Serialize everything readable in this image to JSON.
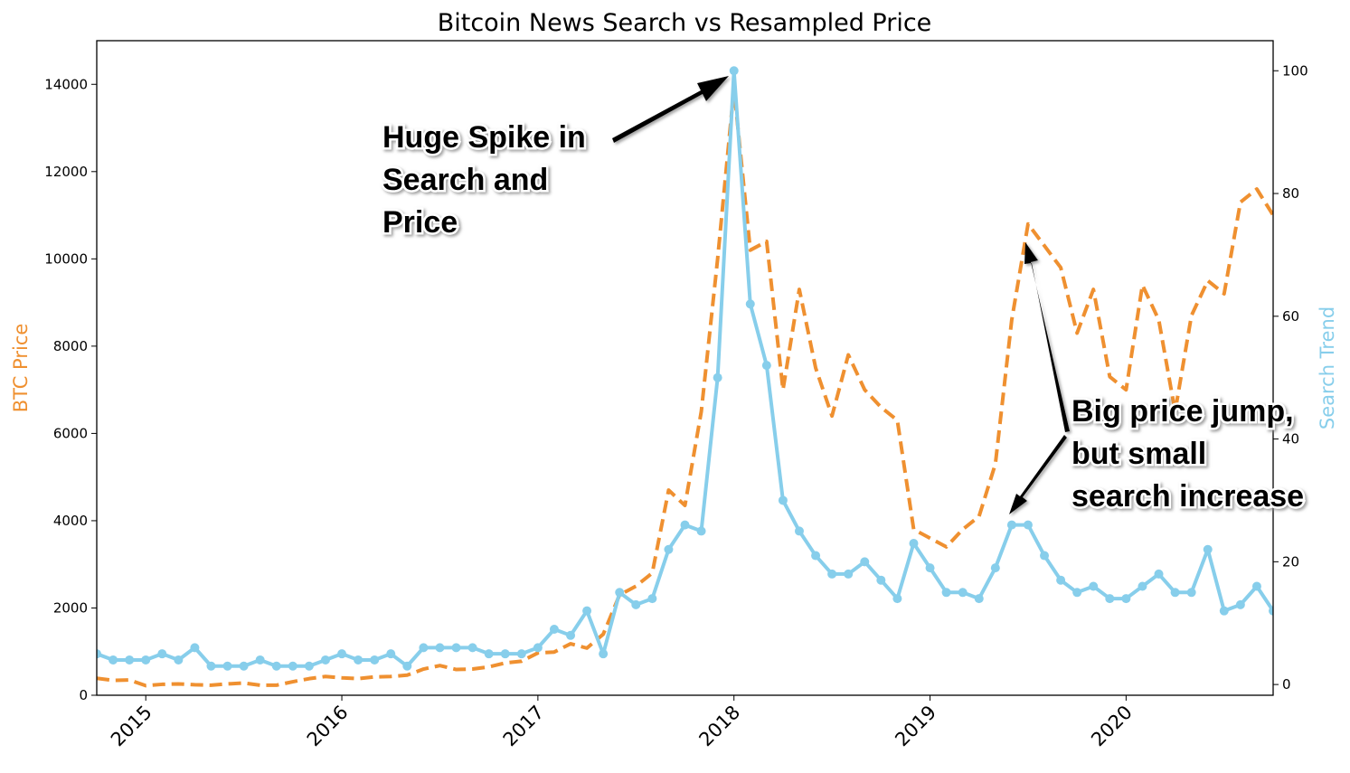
{
  "chart_data": {
    "type": "line",
    "title": "Bitcoin News Search vs Resampled Price",
    "ylabel": "BTC Price",
    "y2label": "Search Trend",
    "x": [
      2014.75,
      2014.8333,
      2014.9167,
      2015,
      2015.0833,
      2015.1667,
      2015.25,
      2015.3333,
      2015.4167,
      2015.5,
      2015.5833,
      2015.6667,
      2015.75,
      2015.8333,
      2015.9167,
      2016,
      2016.0833,
      2016.1667,
      2016.25,
      2016.3333,
      2016.4167,
      2016.5,
      2016.5833,
      2016.6667,
      2016.75,
      2016.8333,
      2016.9167,
      2017,
      2017.0833,
      2017.1667,
      2017.25,
      2017.3333,
      2017.4167,
      2017.5,
      2017.5833,
      2017.6667,
      2017.75,
      2017.8333,
      2017.9167,
      2018,
      2018.0833,
      2018.1667,
      2018.25,
      2018.3333,
      2018.4167,
      2018.5,
      2018.5833,
      2018.6667,
      2018.75,
      2018.8333,
      2018.9167,
      2019,
      2019.0833,
      2019.1667,
      2019.25,
      2019.3333,
      2019.4167,
      2019.5,
      2019.5833,
      2019.6667,
      2019.75,
      2019.8333,
      2019.9167,
      2020,
      2020.0833,
      2020.1667,
      2020.25,
      2020.3333,
      2020.4167,
      2020.5,
      2020.5833,
      2020.6667,
      2020.75
    ],
    "series": [
      {
        "name": "BTC Price",
        "color": "#ef9030",
        "dashed": true,
        "markers": false,
        "values": [
          390,
          340,
          350,
          220,
          250,
          260,
          240,
          230,
          260,
          280,
          230,
          230,
          310,
          380,
          430,
          400,
          380,
          420,
          430,
          460,
          600,
          680,
          590,
          600,
          650,
          740,
          780,
          970,
          990,
          1180,
          1080,
          1400,
          2300,
          2500,
          2800,
          4700,
          4350,
          6500,
          10000,
          13900,
          10200,
          10400,
          7000,
          9300,
          7500,
          6400,
          7800,
          7000,
          6600,
          6300,
          3800,
          3600,
          3400,
          3800,
          4100,
          5300,
          8600,
          10800,
          10300,
          9800,
          8300,
          9300,
          7300,
          7000,
          9400,
          8600,
          6500,
          8700,
          9500,
          9200,
          11300,
          11600,
          11000
        ]
      },
      {
        "name": "Search Trend",
        "color": "#87ceeb",
        "axis": "y2",
        "dashed": false,
        "markers": true,
        "values": [
          5,
          4,
          4,
          4,
          5,
          4,
          6,
          3,
          3,
          3,
          4,
          3,
          3,
          3,
          4,
          5,
          4,
          4,
          5,
          3,
          6,
          6,
          6,
          6,
          5,
          5,
          5,
          6,
          9,
          8,
          12,
          5,
          15,
          13,
          14,
          22,
          26,
          25,
          50,
          100,
          62,
          52,
          30,
          25,
          21,
          18,
          18,
          20,
          17,
          14,
          23,
          19,
          15,
          15,
          14,
          19,
          26,
          26,
          21,
          17,
          15,
          16,
          14,
          14,
          16,
          18,
          15,
          15,
          22,
          12,
          13,
          16,
          12
        ]
      }
    ],
    "xlim": [
      2014.75,
      2020.75
    ],
    "xticks": [
      2015,
      2016,
      2017,
      2018,
      2019,
      2020
    ],
    "ylim": [
      0,
      15000
    ],
    "yticks": [
      0,
      2000,
      4000,
      6000,
      8000,
      10000,
      12000,
      14000
    ],
    "y2lim": [
      -1.75,
      104.9
    ],
    "y2ticks": [
      0,
      20,
      40,
      60,
      80,
      100
    ],
    "annotations": [
      {
        "lines": [
          "Huge Spike in",
          "Search and",
          "Price"
        ]
      },
      {
        "lines": [
          "Big price jump,",
          "but small",
          "search increase"
        ]
      }
    ]
  }
}
